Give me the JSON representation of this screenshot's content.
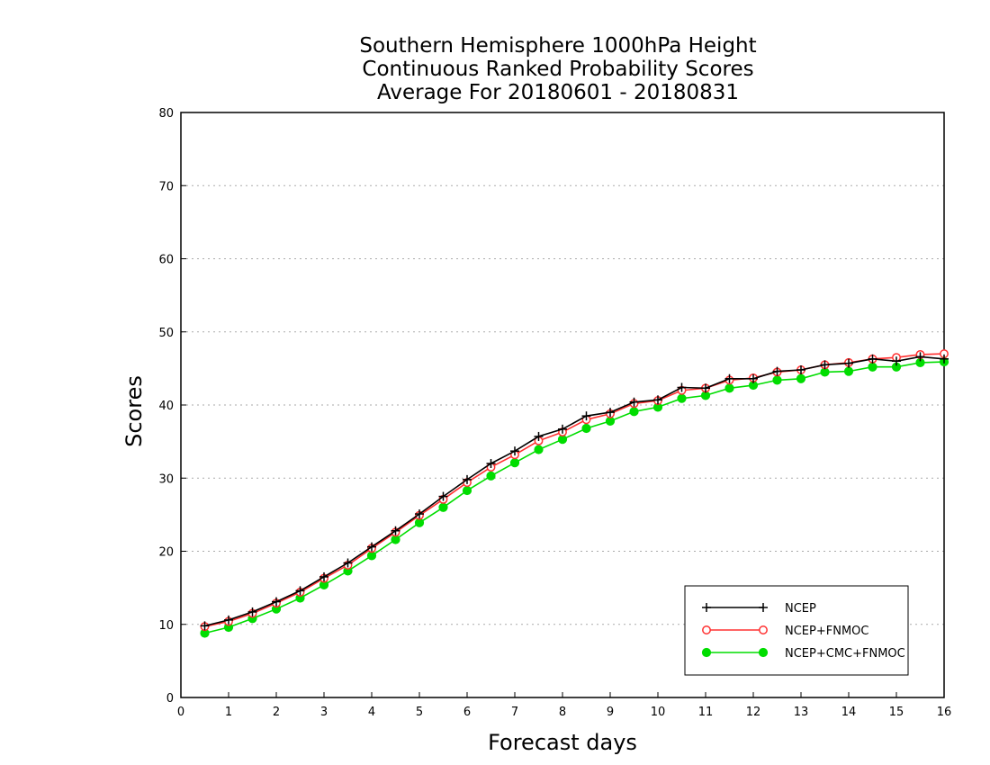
{
  "chart_data": {
    "type": "line",
    "title": [
      "Southern Hemisphere 1000hPa Height",
      "Continuous Ranked Probability Scores",
      "Average For 20180601 - 20180831"
    ],
    "xlabel": "Forecast days",
    "ylabel": "Scores",
    "xlim": [
      0,
      16
    ],
    "ylim": [
      0,
      80
    ],
    "xticks": [
      "0",
      "1",
      "2",
      "3",
      "4",
      "5",
      "6",
      "7",
      "8",
      "9",
      "10",
      "11",
      "12",
      "13",
      "14",
      "15",
      "16"
    ],
    "yticks": [
      "0",
      "10",
      "20",
      "30",
      "40",
      "50",
      "60",
      "70",
      "80"
    ],
    "grid": "horizontal-dotted",
    "legend_position": "bottom-right",
    "x": [
      0.5,
      1,
      1.5,
      2,
      2.5,
      3,
      3.5,
      4,
      4.5,
      5,
      5.5,
      6,
      6.5,
      7,
      7.5,
      8,
      8.5,
      9,
      9.5,
      10,
      10.5,
      11,
      11.5,
      12,
      12.5,
      13,
      13.5,
      14,
      14.5,
      15,
      15.5,
      16
    ],
    "series": [
      {
        "name": "NCEP",
        "color": "#000000",
        "marker": "plus",
        "values": [
          9.8,
          10.6,
          11.7,
          13.1,
          14.6,
          16.5,
          18.4,
          20.6,
          22.8,
          25.1,
          27.5,
          29.8,
          32.0,
          33.7,
          35.7,
          36.7,
          38.5,
          39.0,
          40.4,
          40.7,
          42.4,
          42.3,
          43.6,
          43.6,
          44.6,
          44.8,
          45.5,
          45.7,
          46.3,
          46.0,
          46.6,
          46.3
        ]
      },
      {
        "name": "NCEP+FNMOC",
        "color": "#ff3030",
        "marker": "open-circle",
        "values": [
          9.7,
          10.4,
          11.5,
          12.9,
          14.4,
          16.3,
          18.1,
          20.4,
          22.6,
          24.9,
          27.1,
          29.4,
          31.5,
          33.2,
          35.1,
          36.3,
          38.0,
          38.8,
          40.2,
          40.6,
          42.0,
          42.3,
          43.4,
          43.7,
          44.5,
          44.8,
          45.5,
          45.8,
          46.3,
          46.5,
          46.9,
          47.0
        ]
      },
      {
        "name": "NCEP+CMC+FNMOC",
        "color": "#00dd00",
        "marker": "filled-circle",
        "values": [
          8.8,
          9.6,
          10.8,
          12.1,
          13.6,
          15.4,
          17.3,
          19.4,
          21.6,
          23.9,
          26.0,
          28.3,
          30.3,
          32.1,
          33.9,
          35.3,
          36.8,
          37.8,
          39.1,
          39.7,
          40.9,
          41.3,
          42.3,
          42.7,
          43.4,
          43.6,
          44.5,
          44.6,
          45.2,
          45.2,
          45.8,
          45.9
        ]
      }
    ]
  }
}
